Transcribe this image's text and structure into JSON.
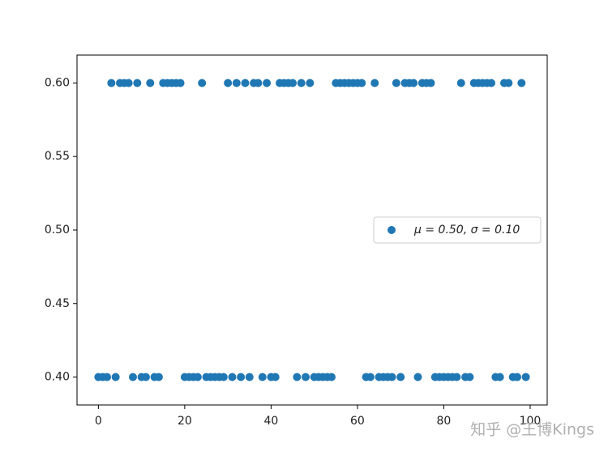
{
  "chart_data": {
    "type": "scatter",
    "x": [
      0,
      1,
      2,
      3,
      4,
      5,
      6,
      7,
      8,
      9,
      10,
      11,
      12,
      13,
      14,
      15,
      16,
      17,
      18,
      19,
      20,
      21,
      22,
      23,
      24,
      25,
      26,
      27,
      28,
      29,
      30,
      31,
      32,
      33,
      34,
      35,
      36,
      37,
      38,
      39,
      40,
      41,
      42,
      43,
      44,
      45,
      46,
      47,
      48,
      49,
      50,
      51,
      52,
      53,
      54,
      55,
      56,
      57,
      58,
      59,
      60,
      61,
      62,
      63,
      64,
      65,
      66,
      67,
      68,
      69,
      70,
      71,
      72,
      73,
      74,
      75,
      76,
      77,
      78,
      79,
      80,
      81,
      82,
      83,
      84,
      85,
      86,
      87,
      88,
      89,
      90,
      91,
      92,
      93,
      94,
      95,
      96,
      97,
      98,
      99
    ],
    "series": [
      {
        "name": "μ = 0.50,  σ = 0.10",
        "color": "#1f77b4",
        "values": [
          0.4,
          0.4,
          0.4,
          0.6,
          0.4,
          0.6,
          0.6,
          0.6,
          0.4,
          0.6,
          0.4,
          0.4,
          0.6,
          0.4,
          0.4,
          0.6,
          0.6,
          0.6,
          0.6,
          0.6,
          0.4,
          0.4,
          0.4,
          0.4,
          0.6,
          0.4,
          0.4,
          0.4,
          0.4,
          0.4,
          0.6,
          0.4,
          0.6,
          0.4,
          0.6,
          0.4,
          0.6,
          0.6,
          0.4,
          0.6,
          0.4,
          0.4,
          0.6,
          0.6,
          0.6,
          0.6,
          0.4,
          0.6,
          0.4,
          0.6,
          0.4,
          0.4,
          0.4,
          0.4,
          0.4,
          0.6,
          0.6,
          0.6,
          0.6,
          0.6,
          0.6,
          0.6,
          0.4,
          0.4,
          0.6,
          0.4,
          0.4,
          0.4,
          0.4,
          0.6,
          0.4,
          0.6,
          0.6,
          0.6,
          0.4,
          0.6,
          0.6,
          0.6,
          0.4,
          0.4,
          0.4,
          0.4,
          0.4,
          0.4,
          0.6,
          0.4,
          0.4,
          0.6,
          0.6,
          0.6,
          0.6,
          0.6,
          0.4,
          0.4,
          0.6,
          0.6,
          0.4,
          0.4,
          0.6,
          0.4
        ]
      }
    ],
    "xlim": [
      -4.95,
      103.95
    ],
    "xticks": [
      0,
      20,
      40,
      60,
      80,
      100
    ],
    "ylim": [
      0.381,
      0.619
    ],
    "yticks": [
      {
        "value": 0.4,
        "label": "0.40"
      },
      {
        "value": 0.45,
        "label": "0.45"
      },
      {
        "value": 0.5,
        "label": "0.50"
      },
      {
        "value": 0.55,
        "label": "0.55"
      },
      {
        "value": 0.6,
        "label": "0.60"
      }
    ],
    "legend": "center right",
    "watermark": "知乎 @王博Kings"
  }
}
